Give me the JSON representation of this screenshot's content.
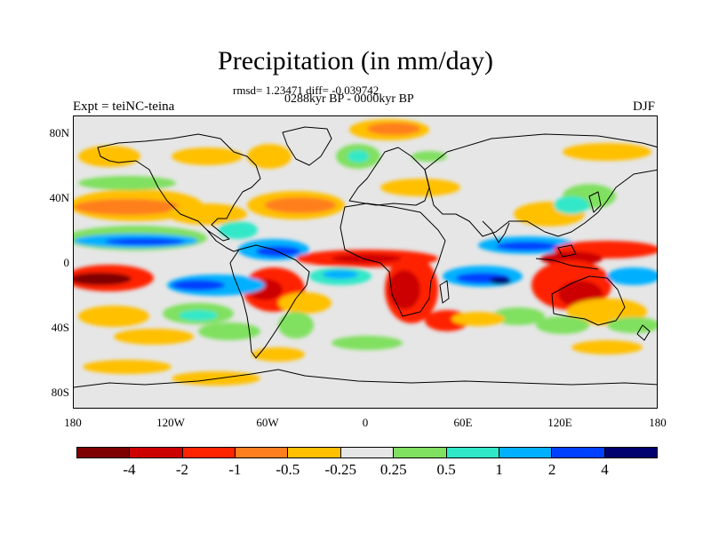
{
  "title": "Precipitation (in mm/day)",
  "stats_line": "rmsd= 1.23471 diff= -0.039742",
  "period_line": "0288kyr BP - 0000kyr BP",
  "left_label": "Expt = teiNC-teina",
  "right_label": "DJF",
  "lon_ticks": [
    "180",
    "120W",
    "60W",
    "0",
    "60E",
    "120E",
    "180"
  ],
  "lat_ticks": [
    "80N",
    "40N",
    "0",
    "40S",
    "80S"
  ],
  "colorbar": {
    "labels": [
      "-4",
      "-2",
      "-1",
      "-0.5",
      "-0.25",
      "0.25",
      "0.5",
      "1",
      "2",
      "4"
    ],
    "colors": [
      "#7f0000",
      "#cc0000",
      "#ff2400",
      "#ff7f1f",
      "#ffc000",
      "#e6e6e6",
      "#80e060",
      "#30e8c8",
      "#00b0ff",
      "#0040ff",
      "#00006e"
    ]
  },
  "colors": {
    "background": "#e6e6e6",
    "coastline": "#000000"
  }
}
